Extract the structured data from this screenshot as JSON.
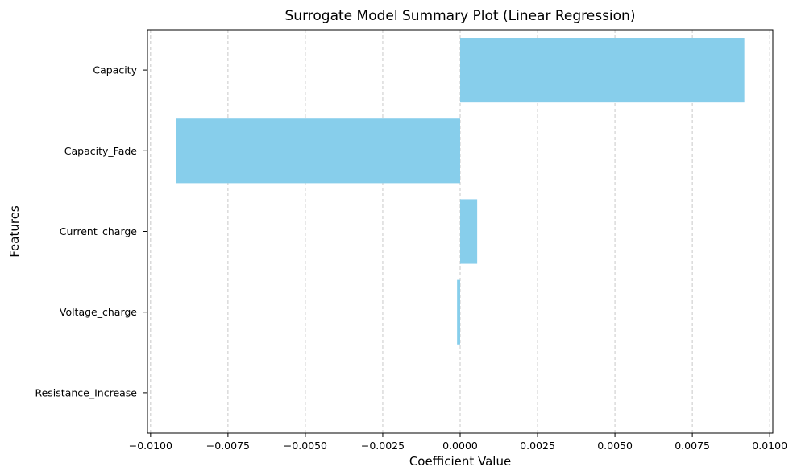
{
  "chart_data": {
    "type": "bar",
    "orientation": "horizontal",
    "title": "Surrogate Model Summary Plot (Linear Regression)",
    "xlabel": "Coefficient Value",
    "ylabel": "Features",
    "categories": [
      "Capacity",
      "Capacity_Fade",
      "Current_charge",
      "Voltage_charge",
      "Resistance_Increase"
    ],
    "values": [
      0.00918,
      -0.00918,
      0.00055,
      -0.0001,
      0.0
    ],
    "xlim": [
      -0.0101,
      0.0101
    ],
    "xticks": [
      -0.01,
      -0.0075,
      -0.005,
      -0.0025,
      0.0,
      0.0025,
      0.005,
      0.0075,
      0.01
    ],
    "xtick_labels": [
      "−0.0100",
      "−0.0075",
      "−0.0050",
      "−0.0025",
      "0.0000",
      "0.0025",
      "0.0050",
      "0.0075",
      "0.0100"
    ],
    "grid": "x-dashed",
    "bar_color": "#87CEEB"
  }
}
